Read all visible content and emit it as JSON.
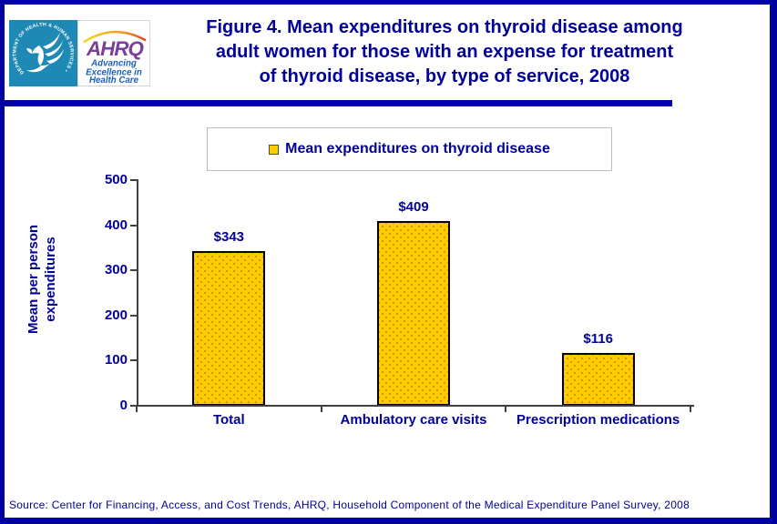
{
  "header": {
    "hhs_ring_text": "DEPARTMENT OF HEALTH & HUMAN SERVICES • USA",
    "ahrq": {
      "acronym": "AHRQ",
      "tagline_lines": [
        "Advancing",
        "Excellence in",
        "Health Care"
      ]
    },
    "title_lines": [
      "Figure 4. Mean expenditures on thyroid disease among",
      "adult women for those with an expense for treatment",
      "of thyroid disease, by type of service, 2008"
    ]
  },
  "chart_data": {
    "type": "bar",
    "title": "Figure 4. Mean expenditures on thyroid disease among adult women for those with an expense for treatment of thyroid disease, by type of service, 2008",
    "categories": [
      "Total",
      "Ambulatory care visits",
      "Prescription medications"
    ],
    "values": [
      343,
      409,
      116
    ],
    "value_labels": [
      "$343",
      "$409",
      "$116"
    ],
    "xlabel": "",
    "ylabel": "Mean per person\nexpenditures",
    "ylim": [
      0,
      500
    ],
    "yticks": [
      0,
      100,
      200,
      300,
      400,
      500
    ],
    "grid": false,
    "legend": [
      "Mean expenditures on thyroid disease"
    ],
    "legend_position": "top",
    "bar_color": "#FFCC00",
    "bar_dot_color": "#D98F00",
    "bar_border_color": "#000000",
    "text_color": "#000099"
  },
  "footer": {
    "source": "Source: Center for Financing, Access, and Cost Trends, AHRQ, Household Component of the Medical Expenditure Panel Survey, 2008"
  },
  "colors": {
    "page_border": "#0000A0",
    "navy_text": "#000099",
    "hhs_teal": "#1E89B4",
    "ahrq_purple": "#7A3F98",
    "ahrq_blue": "#1B5FBF",
    "axis": "#404040"
  }
}
